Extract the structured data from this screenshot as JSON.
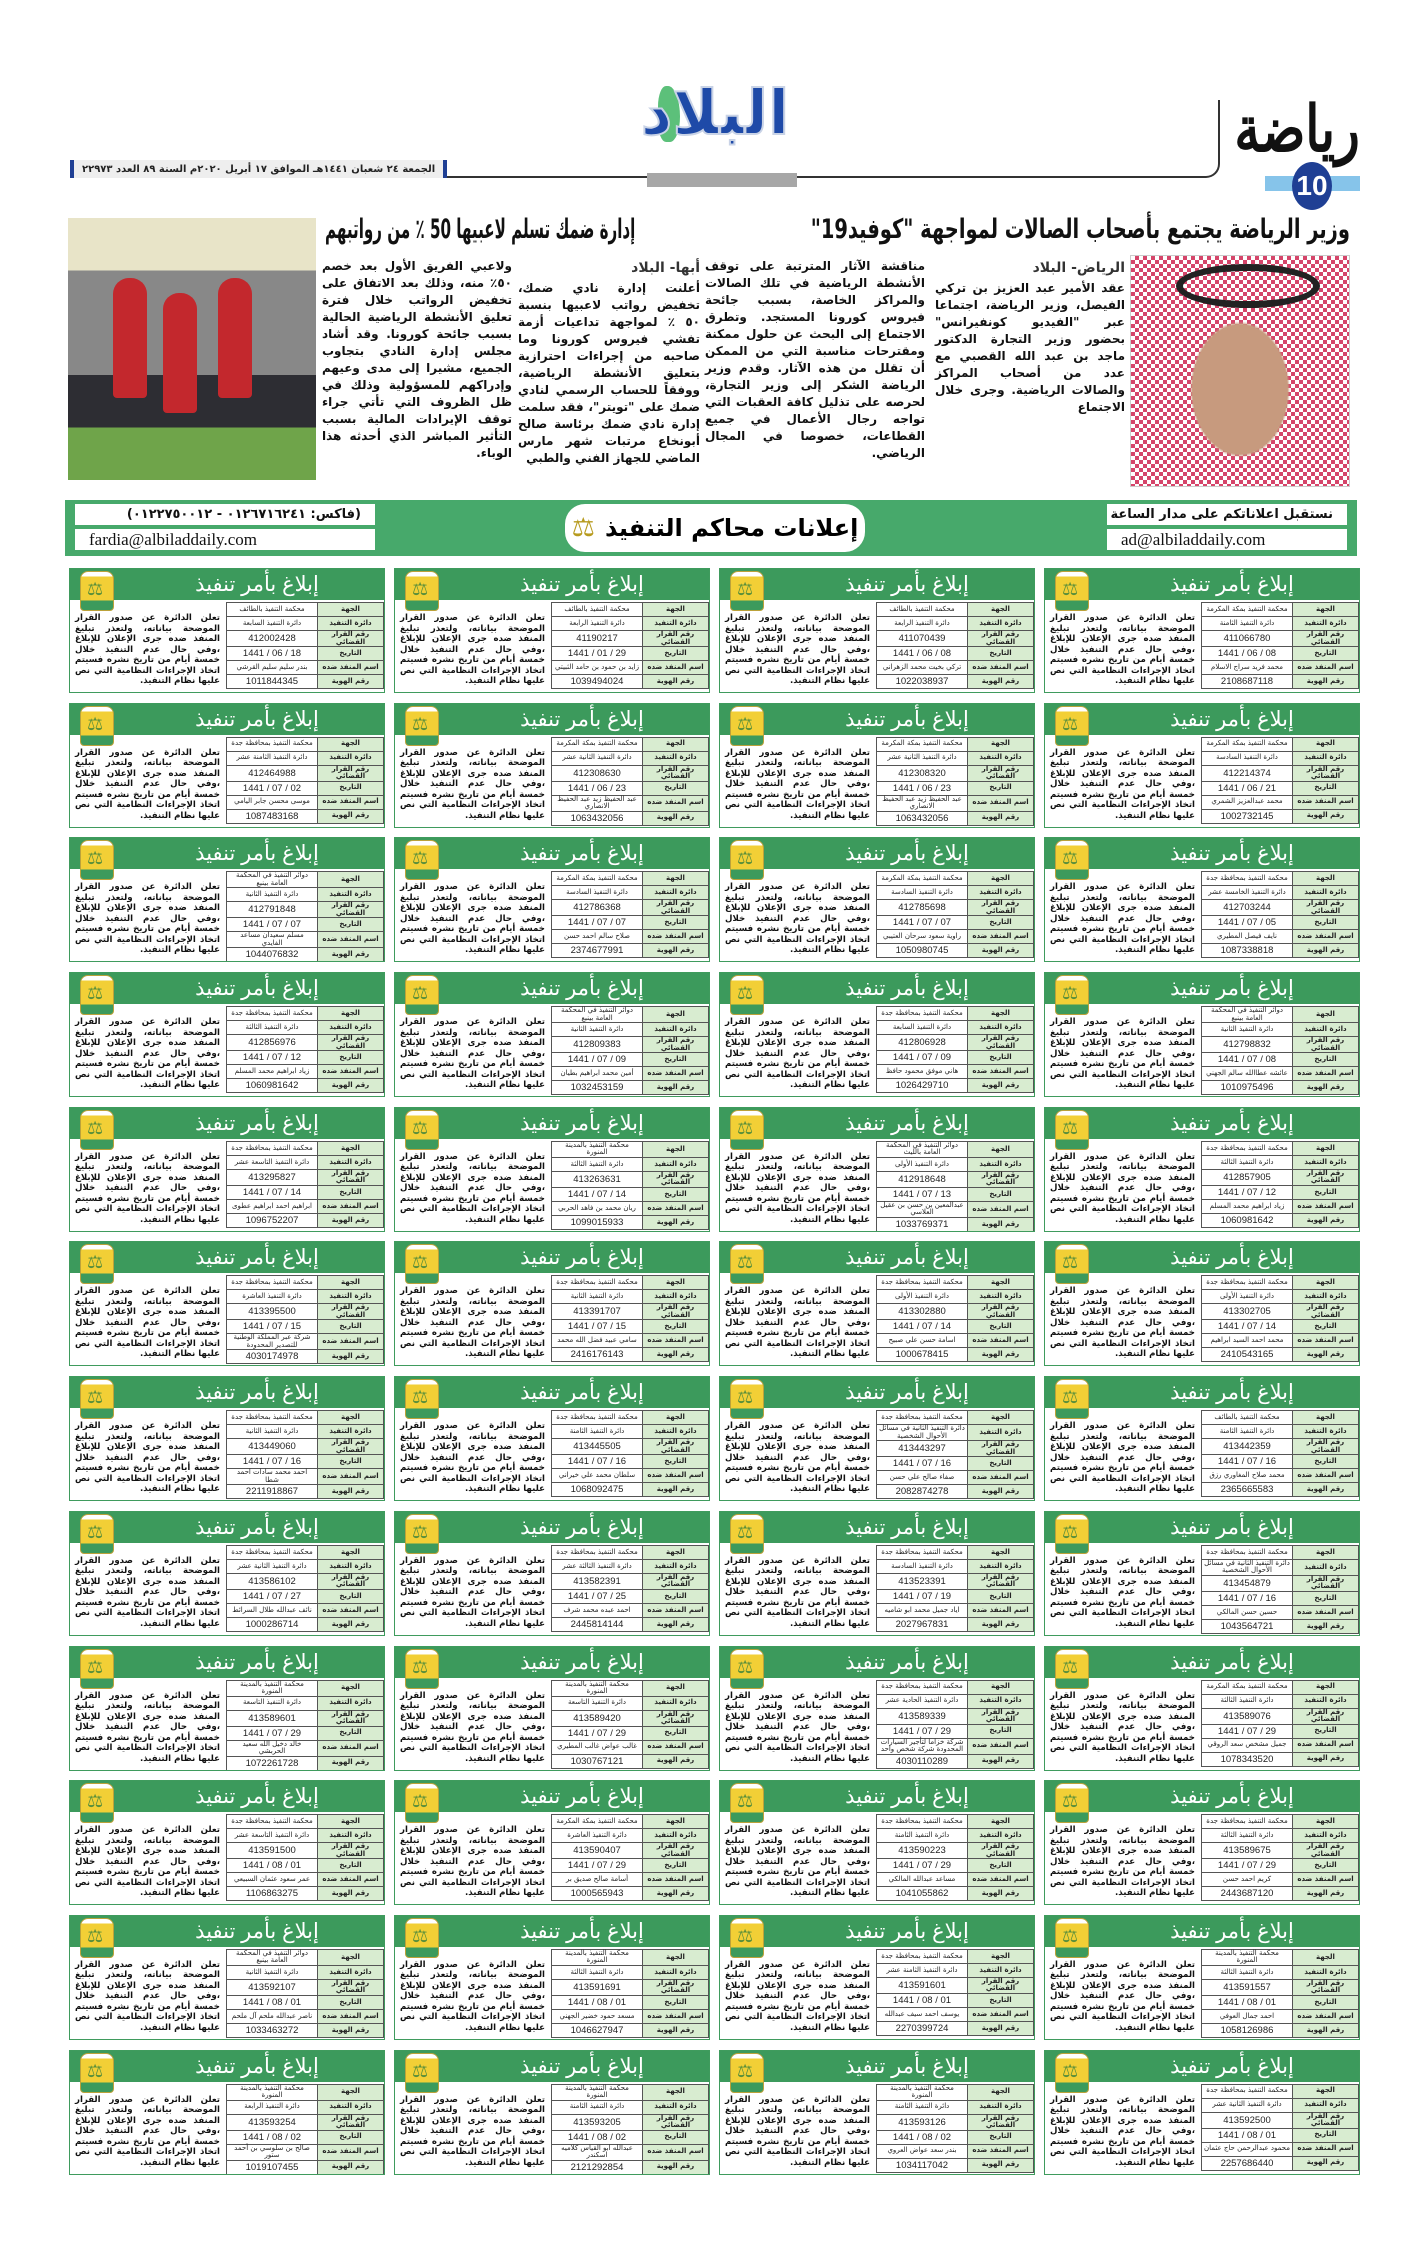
{
  "header": {
    "section": "رياضة",
    "page_number": "10",
    "logo_text": "البلاد",
    "dateline": "الجمعة ٢٤ شعبان ١٤٤١هـ الموافق ١٧ أبريل ٢٠٢٠م السنة ٨٩ العدد ٢٢٩٧٣"
  },
  "article1": {
    "headline": "وزير الرياضة يجتمع بأصحاب الصالات لمواجهة \"كوفيد19\"",
    "byline": "الرياض- البلاد",
    "col1": "عقد الأمير عبد العزيز بن تركي الفيصل، وزير الرياضة، اجتماعا عبر \"الفيديو كونفيرانس\" بحضور وزير التجارة الدكتور ماجد بن عبد الله القصبي مع عدد من أصحاب المراكز والصالات الرياضية. وجرى خلال الاجتماع",
    "col2": "مناقشة الآثار المترتبة على توقف الأنشطة الرياضية في تلك الصالات والمراكز الخاصة، بسبب جائحة فيروس كورونا المستجد. وتطرق الاجتماع إلى البحث عن حلول ممكنة ومقترحات مناسبة التي من الممكن أن تقلل من هذه الآثار. وقدم وزير الرياضة الشكر إلى وزير التجارة، لحرصه على تذليل كافة العقبات التي تواجه رجال الأعمال في جميع القطاعات، خصوصا في المجال الرياضي."
  },
  "article2": {
    "headline": "إدارة ضمك تسلم لاعبيها 50 ٪ من رواتبهم",
    "byline": "أبها- البلاد",
    "col1": "أعلنت إدارة نادي ضمك، تخفيض رواتب لاعبيها بنسبة ٥٠ ٪ لمواجهة تداعيات أزمة تفشي فيروس كورونا وما صاحبه من إجراءات احترازية بتعليق الأنشطة الرياضية، ووفقاً للحساب الرسمي لنادي ضمك على \"تويتر\"، فقد سلمت إدارة نادي ضمك برئاسة صالح أبونخاع مرتبات شهر مارس الماضي للجهاز الفني والطبي",
    "col2": "ولاعبي الفريق الأول بعد خصم ٥٠٪ منه، وذلك بعد الاتفاق على تخفيض الرواتب خلال فترة تعليق الأنشطة الرياضية الحالية بسبب جائحة كورونا. وقد أشاد مجلس إدارة النادي بتجاوب الجميع، مشيرا إلى مدى وعيهم وإدراكهم للمسؤولية وذلك في ظل الظروف التي تأتي جراء توقف الإيرادات المالية بسبب التأثير المباشر الذي أحدثه هذا الوباء."
  },
  "banner": {
    "right_line1": "نستقبل اعلاناتكم على مدار الساعة",
    "right_email": "ad@albiladdaily.com",
    "title": "إعلانات محاكم التنفيذ",
    "left_fax": "(فاكس: ٠١٢٦٧١٦٢٤١ - ٠١٢٢٧٥٠٠١٢)",
    "left_email": "fardia@albiladdaily.com",
    "color": "#47a96b"
  },
  "ad_template": {
    "title": "إبلاغ بأمر تنفيذ",
    "labels": [
      "الجهة",
      "دائرة التنفيذ",
      "رقم القرار القضائي",
      "التاريخ",
      "اسم المنفذ ضده",
      "رقم الهوية"
    ],
    "body": "تعلن الدائرة عن صدور القرار الموضحة بياناته، ولتعذر تبليغ المنفذ ضده جرى الإعلان للإبلاغ ،وفي حال عدم التنفيذ خلال خمسة أيام من تاريخ نشره فسيتم اتخاذ الإجراءات النظامية التي نص عليها نظام التنفيذ.",
    "header_color": "#3c9a5c",
    "label_color": "#d8ecd0"
  },
  "ads": [
    [
      "محكمة التنفيذ بمكة المكرمة",
      "دائرة التنفيذ الثامنة",
      "411066780",
      "08 / 06 / 1441",
      "محمد فريد سراج الاسلام",
      "2108687118"
    ],
    [
      "محكمة التنفيذ بالطائف",
      "دائرة التنفيذ الرابعة",
      "411070439",
      "08 / 06 / 1441",
      "تركي بخيت محمد الزهراني",
      "1022038937"
    ],
    [
      "محكمة التنفيذ بالطائف",
      "دائرة التنفيذ الرابعة",
      "41190217",
      "29 / 01 / 1441",
      "زايد بن حمود بن حامد الثبيتي",
      "1039494024"
    ],
    [
      "محكمة التنفيذ بالطائف",
      "دائرة التنفيذ السابعة",
      "412002428",
      "18 / 06 / 1441",
      "بندر سليم سليم القرشي",
      "1011844345"
    ],
    [
      "محكمة التنفيذ بمكة المكرمة",
      "دائرة التنفيذ السادسة",
      "412214374",
      "21 / 06 / 1441",
      "محمد عبدالعزيز الشمري",
      "1002732145"
    ],
    [
      "محكمة التنفيذ بمكة المكرمة",
      "دائرة التنفيذ الثانية عشر",
      "412308320",
      "23 / 06 / 1441",
      "عبد الحفيظ زيد عبد الحفيظ الانصاري",
      "1063432056"
    ],
    [
      "محكمة التنفيذ بمكة المكرمة",
      "دائرة التنفيذ الثانية عشر",
      "412308630",
      "23 / 06 / 1441",
      "عبد الحفيظ زيد عبد الحفيظ الانصاري",
      "1063432056"
    ],
    [
      "محكمة التنفيذ بمحافظة جدة",
      "دائرة التنفيذ الثامنة عشر",
      "412464988",
      "02 / 07 / 1441",
      "موسى محسن جابر اليامي",
      "1087483168"
    ],
    [
      "محكمة التنفيذ بمحافظة جدة",
      "دائرة التنفيذ الخامسة عشر",
      "412703244",
      "05 / 07 / 1441",
      "نايف فيصل المطيري",
      "1087338818"
    ],
    [
      "محكمة التنفيذ بمكة المكرمة",
      "دائرة التنفيذ السادسة",
      "412785698",
      "07 / 07 / 1441",
      "راوية سعود سرحان العتيبي",
      "1050980745"
    ],
    [
      "محكمة التنفيذ بمكة المكرمة",
      "دائرة التنفيذ السادسة",
      "412786368",
      "07 / 07 / 1441",
      "صلاح سالم احمد حسن",
      "2374677991"
    ],
    [
      "دوائر التنفيذ في المحكمة العامة بينبع",
      "دائرة التنفيذ الثانية",
      "412791848",
      "07 / 07 / 1441",
      "مسلم سعيدان مساعد الفايدي",
      "1044076832"
    ],
    [
      "دوائر التنفيذ في المحكمة العامة بينبع",
      "دائرة التنفيذ الثانية",
      "412798832",
      "08 / 07 / 1441",
      "عائشه عطاالله سالم الجهني",
      "1010975496"
    ],
    [
      "محكمة التنفيذ بمحافظة جدة",
      "دائرة التنفيذ السابعة",
      "412806928",
      "09 / 07 / 1441",
      "هاني موفق محمود حافظ",
      "1026429710"
    ],
    [
      "دوائر التنفيذ في المحكمة العامة بينبع",
      "دائرة التنفيذ الثانية",
      "412809383",
      "09 / 07 / 1441",
      "أمين محمد ابراهيم بطيان",
      "1032453159"
    ],
    [
      "محكمة التنفيذ بمحافظة جدة",
      "دائرة التنفيذ الثالثة",
      "412856976",
      "12 / 07 / 1441",
      "زياد ابراهيم محمد المسلم",
      "1060981642"
    ],
    [
      "محكمة التنفيذ بمحافظة جدة",
      "دائرة التنفيذ الثالثة",
      "412857905",
      "12 / 07 / 1441",
      "زياد ابراهيم محمد المسلم",
      "1060981642"
    ],
    [
      "دوائر التنفيذ في المحكمة العامة بالليث",
      "دائرة التنفيذ الأولى",
      "412918648",
      "13 / 07 / 1441",
      "عبدالمعين بن حسن بن عقيل العلاسي",
      "1033769371"
    ],
    [
      "محكمة التنفيذ بالمدينة المنورة",
      "دائرة التنفيذ الثالثة",
      "413263631",
      "14 / 07 / 1441",
      "ريان محمد بن فاهد الحربي",
      "1099015933"
    ],
    [
      "محكمة التنفيذ بمحافظة جدة",
      "دائرة التنفيذ التاسعة عشر",
      "413295827",
      "14 / 07 / 1441",
      "ابراهيم احمد ابراهيم عطوى",
      "1096752207"
    ],
    [
      "محكمة التنفيذ بمحافظة جدة",
      "دائرة التنفيذ الأولى",
      "413302705",
      "14 / 07 / 1441",
      "محمد احمد السيد ابراهيم",
      "2410543165"
    ],
    [
      "محكمة التنفيذ بمحافظة جدة",
      "دائرة التنفيذ الأولى",
      "413302880",
      "14 / 07 / 1441",
      "اسامة حسن علي صبيح",
      "1000678415"
    ],
    [
      "محكمة التنفيذ بمحافظة جدة",
      "دائرة التنفيذ الثانية",
      "413391707",
      "15 / 07 / 1441",
      "سامي عبيد فضل الله محمد",
      "2416176143"
    ],
    [
      "محكمة التنفيذ بمحافظة جدة",
      "دائرة التنفيذ العاشرة",
      "413395500",
      "15 / 07 / 1441",
      "شركة عبر المملكة الوطنية للتصدير المحدودة",
      "4030174978"
    ],
    [
      "محكمة التنفيذ بالطائف",
      "دائرة التنفيذ الثامنة",
      "413442359",
      "16 / 07 / 1441",
      "محمد صلاح المغاوري رزق",
      "2365665583"
    ],
    [
      "محكمة التنفيذ بمحافظة جدة",
      "دائرة التنفيذ الثانية في مسائل الأحوال الشخصية",
      "413443297",
      "16 / 07 / 1441",
      "صفاء صالح علي حسن",
      "2082874278"
    ],
    [
      "محكمة التنفيذ بمحافظة جدة",
      "دائرة التنفيذ الثامنة",
      "413445505",
      "16 / 07 / 1441",
      "سلطان محمد علي خيراني",
      "1068092475"
    ],
    [
      "محكمة التنفيذ بمحافظة جدة",
      "دائرة التنفيذ الثانية",
      "413449060",
      "16 / 07 / 1441",
      "احمد محمد سادات احمد شطا",
      "2211918867"
    ],
    [
      "محكمة التنفيذ بمحافظة جدة",
      "دائرة التنفيذ الثانية في مسائل الأحوال الشخصية",
      "413454879",
      "16 / 07 / 1441",
      "حسين حسن المالكي",
      "1043564721"
    ],
    [
      "محكمة التنفيذ بمحافظة جدة",
      "دائرة التنفيذ السادسة",
      "413523391",
      "19 / 07 / 1441",
      "اياد جميل محمد ابو شاميه",
      "2027967831"
    ],
    [
      "محكمة التنفيذ بمحافظة جدة",
      "دائرة التنفيذ الثالثة عشر",
      "413582391",
      "25 / 07 / 1441",
      "احمد عبده محمد شرف",
      "2445814144"
    ],
    [
      "محكمة التنفيذ بمحافظة جدة",
      "دائرة التنفيذ الثانية عشر",
      "413586102",
      "27 / 07 / 1441",
      "نائف عبدالله طلال السرائط",
      "1000286714"
    ],
    [
      "محكمة التنفيذ بمكة المكرمة",
      "دائرة التنفيذ الثالثة",
      "413589076",
      "29 / 07 / 1441",
      "جميل مشخص سعد الروقي",
      "1078343520"
    ],
    [
      "محكمة التنفيذ بمحافظة جدة",
      "دائرة التنفيذ الحادية عشر",
      "413589339",
      "29 / 07 / 1441",
      "شركة خزاما لتأجير السيارات المحدودة شركة شخص واحد",
      "4030110289"
    ],
    [
      "محكمة التنفيذ بالمدينة المنورة",
      "دائرة التنفيذ التاسعة",
      "413589420",
      "29 / 07 / 1441",
      "غالب عواض غالب المطيري",
      "1030767121"
    ],
    [
      "محكمة التنفيذ بالمدينة المنورة",
      "دائرة التنفيذ التاسعة",
      "413589601",
      "29 / 07 / 1441",
      "خالد دخيل الله سعيد الحربشي",
      "1072261728"
    ],
    [
      "محكمة التنفيذ بمحافظة جدة",
      "دائرة التنفيذ الثالثة",
      "413589675",
      "29 / 07 / 1441",
      "كريم احمد حسن",
      "2443687120"
    ],
    [
      "محكمة التنفيذ بمحافظة جدة",
      "دائرة التنفيذ الثامنة",
      "413590223",
      "29 / 07 / 1441",
      "مساعد عبدالله المالكي",
      "1041055862"
    ],
    [
      "محكمة التنفيذ بمكة المكرمة",
      "دائرة التنفيذ العاشرة",
      "413590407",
      "29 / 07 / 1441",
      "أسامة صالح صديق بر",
      "1000565943"
    ],
    [
      "محكمة التنفيذ بمحافظة جدة",
      "دائرة التنفيذ التاسعة عشر",
      "413591500",
      "01 / 08 / 1441",
      "عمر سعود عثمان السبيعي",
      "1106863275"
    ],
    [
      "محكمة التنفيذ بالمدينة المنورة",
      "دائرة التنفيذ الثالثة",
      "413591557",
      "01 / 08 / 1441",
      "احمد جمال العوفي",
      "1058126986"
    ],
    [
      "محكمة التنفيذ بمحافظة جدة",
      "دائرة التنفيذ الثامنة عشر",
      "413591601",
      "01 / 08 / 1441",
      "يوسف احمد سيف عبدالله",
      "2270399724"
    ],
    [
      "محكمة التنفيذ بالمدينة المنورة",
      "دائرة التنفيذ الثالثة",
      "413591691",
      "01 / 08 / 1441",
      "مسعد حمود خضير الجهني",
      "1046627947"
    ],
    [
      "دوائر التنفيذ في المحكمة العامة بينبع",
      "دائرة التنفيذ الثانية",
      "413592107",
      "01 / 08 / 1441",
      "ناصر عبدالله ملحم آل ملحم",
      "1033463272"
    ],
    [
      "محكمة التنفيذ بمحافظة جدة",
      "دائرة التنفيذ الثانية عشر",
      "413592500",
      "01 / 08 / 1441",
      "محمود عبدالرحمن حاج عثمان",
      "2257686440"
    ],
    [
      "محكمة التنفيذ بالمدينة المنورة",
      "دائرة التنفيذ الثامنة",
      "413593126",
      "02 / 08 / 1441",
      "بندر سعد عواض العروي",
      "1034117042"
    ],
    [
      "محكمة التنفيذ بالمدينة المنورة",
      "دائرة التنفيذ الثامنة",
      "413593205",
      "02 / 08 / 1441",
      "عبدالله ابو القياس كلاميه اسكندر",
      "2121292854"
    ],
    [
      "محكمة التنفيذ بالمدينة المنورة",
      "دائرة التنفيذ الرابعة",
      "413593254",
      "02 / 08 / 1441",
      "صالح بن سلوسي بن أحمد ستور",
      "1019107455"
    ]
  ]
}
